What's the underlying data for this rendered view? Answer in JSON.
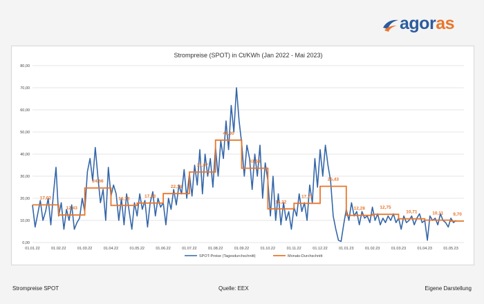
{
  "brand": {
    "logo_part1": "agor",
    "logo_part2": "as",
    "primary_color": "#2c5b9e",
    "accent_color": "#e8762c"
  },
  "footer": {
    "left": "Strompreise SPOT",
    "center": "Quelle: EEX",
    "right": "Eigene Darstellung"
  },
  "chart_data": {
    "type": "line",
    "title": "Strompreise (SPOT) in Ct/KWh (Jan 2022 - Mai 2023)",
    "xlabel": "",
    "ylabel": "",
    "ylim": [
      0,
      80
    ],
    "yticks": [
      0,
      10,
      20,
      30,
      40,
      50,
      60,
      70,
      80
    ],
    "ytick_labels": [
      "0,00",
      "10,00",
      "20,00",
      "30,00",
      "40,00",
      "50,00",
      "60,00",
      "70,00",
      "80,00"
    ],
    "xlim": [
      0,
      16.5
    ],
    "xtick_labels": [
      "01.01.22",
      "01.02.22",
      "01.03.22",
      "01.04.22",
      "01.05.22",
      "01.06.22",
      "01.07.22",
      "01.08.22",
      "01.09.22",
      "01.10.22",
      "01.11.22",
      "01.12.22",
      "01.01.23",
      "01.02.23",
      "01.03.23",
      "01.04.23",
      "01.05.23"
    ],
    "grid": true,
    "legend_position": "bottom",
    "series": [
      {
        "name": "SPOT-Preise (Tagesdurchschnitt)",
        "color": "#3466a8",
        "points": [
          [
            0.0,
            17
          ],
          [
            0.1,
            7
          ],
          [
            0.2,
            13
          ],
          [
            0.3,
            19
          ],
          [
            0.4,
            10
          ],
          [
            0.5,
            14
          ],
          [
            0.6,
            20
          ],
          [
            0.7,
            8
          ],
          [
            0.8,
            22
          ],
          [
            0.9,
            34
          ],
          [
            1.0,
            12
          ],
          [
            1.1,
            18
          ],
          [
            1.2,
            6
          ],
          [
            1.3,
            15
          ],
          [
            1.4,
            10
          ],
          [
            1.5,
            17
          ],
          [
            1.6,
            6
          ],
          [
            1.7,
            9
          ],
          [
            1.8,
            11
          ],
          [
            1.9,
            20
          ],
          [
            2.0,
            14
          ],
          [
            2.1,
            32
          ],
          [
            2.2,
            38
          ],
          [
            2.3,
            28
          ],
          [
            2.4,
            43
          ],
          [
            2.5,
            30
          ],
          [
            2.6,
            18
          ],
          [
            2.7,
            24
          ],
          [
            2.8,
            10
          ],
          [
            2.9,
            34
          ],
          [
            3.0,
            21
          ],
          [
            3.1,
            26
          ],
          [
            3.2,
            22
          ],
          [
            3.3,
            10
          ],
          [
            3.4,
            20
          ],
          [
            3.5,
            8
          ],
          [
            3.6,
            22
          ],
          [
            3.7,
            14
          ],
          [
            3.8,
            6
          ],
          [
            3.9,
            18
          ],
          [
            4.0,
            12
          ],
          [
            4.1,
            22
          ],
          [
            4.2,
            15
          ],
          [
            4.3,
            19
          ],
          [
            4.4,
            7
          ],
          [
            4.5,
            18
          ],
          [
            4.6,
            23
          ],
          [
            4.7,
            12
          ],
          [
            4.8,
            20
          ],
          [
            4.9,
            16
          ],
          [
            5.0,
            18
          ],
          [
            5.1,
            8
          ],
          [
            5.2,
            20
          ],
          [
            5.3,
            15
          ],
          [
            5.4,
            24
          ],
          [
            5.5,
            17
          ],
          [
            5.6,
            26
          ],
          [
            5.7,
            22
          ],
          [
            5.8,
            33
          ],
          [
            5.9,
            20
          ],
          [
            6.0,
            31
          ],
          [
            6.1,
            21
          ],
          [
            6.2,
            35
          ],
          [
            6.3,
            26
          ],
          [
            6.4,
            42
          ],
          [
            6.5,
            22
          ],
          [
            6.6,
            40
          ],
          [
            6.7,
            30
          ],
          [
            6.8,
            38
          ],
          [
            6.9,
            25
          ],
          [
            7.0,
            43
          ],
          [
            7.1,
            30
          ],
          [
            7.2,
            46
          ],
          [
            7.3,
            38
          ],
          [
            7.4,
            55
          ],
          [
            7.5,
            42
          ],
          [
            7.6,
            62
          ],
          [
            7.7,
            50
          ],
          [
            7.8,
            70
          ],
          [
            7.9,
            55
          ],
          [
            8.0,
            45
          ],
          [
            8.1,
            30
          ],
          [
            8.2,
            44
          ],
          [
            8.3,
            38
          ],
          [
            8.4,
            24
          ],
          [
            8.5,
            40
          ],
          [
            8.6,
            30
          ],
          [
            8.7,
            44
          ],
          [
            8.8,
            20
          ],
          [
            8.9,
            36
          ],
          [
            9.0,
            28
          ],
          [
            9.1,
            12
          ],
          [
            9.2,
            30
          ],
          [
            9.3,
            10
          ],
          [
            9.4,
            22
          ],
          [
            9.5,
            8
          ],
          [
            9.6,
            18
          ],
          [
            9.7,
            10
          ],
          [
            9.8,
            14
          ],
          [
            9.9,
            6
          ],
          [
            10.0,
            16
          ],
          [
            10.1,
            12
          ],
          [
            10.2,
            22
          ],
          [
            10.3,
            14
          ],
          [
            10.4,
            18
          ],
          [
            10.5,
            10
          ],
          [
            10.6,
            26
          ],
          [
            10.7,
            18
          ],
          [
            10.8,
            38
          ],
          [
            10.9,
            25
          ],
          [
            11.0,
            42
          ],
          [
            11.1,
            30
          ],
          [
            11.2,
            44
          ],
          [
            11.3,
            35
          ],
          [
            11.4,
            28
          ],
          [
            11.5,
            12
          ],
          [
            11.6,
            6
          ],
          [
            11.7,
            1
          ],
          [
            11.8,
            0.5
          ],
          [
            11.9,
            8
          ],
          [
            12.0,
            15
          ],
          [
            12.1,
            10
          ],
          [
            12.2,
            18
          ],
          [
            12.3,
            12
          ],
          [
            12.4,
            14
          ],
          [
            12.5,
            8
          ],
          [
            12.6,
            14
          ],
          [
            12.7,
            11
          ],
          [
            12.8,
            12
          ],
          [
            12.9,
            9
          ],
          [
            13.0,
            16
          ],
          [
            13.1,
            10
          ],
          [
            13.2,
            13
          ],
          [
            13.3,
            8
          ],
          [
            13.4,
            11
          ],
          [
            13.5,
            9
          ],
          [
            13.6,
            12
          ],
          [
            13.7,
            10
          ],
          [
            13.8,
            13
          ],
          [
            13.9,
            9
          ],
          [
            14.0,
            11
          ],
          [
            14.1,
            6
          ],
          [
            14.2,
            12
          ],
          [
            14.3,
            9
          ],
          [
            14.4,
            10
          ],
          [
            14.5,
            12
          ],
          [
            14.6,
            8
          ],
          [
            14.7,
            11
          ],
          [
            14.8,
            13
          ],
          [
            14.9,
            9
          ],
          [
            15.0,
            10
          ],
          [
            15.1,
            1
          ],
          [
            15.2,
            12
          ],
          [
            15.3,
            10
          ],
          [
            15.4,
            11
          ],
          [
            15.5,
            8
          ],
          [
            15.6,
            13
          ],
          [
            15.7,
            10
          ],
          [
            15.8,
            9
          ],
          [
            15.9,
            7
          ],
          [
            16.0,
            11
          ],
          [
            16.1,
            9
          ],
          [
            16.2,
            10
          ]
        ]
      },
      {
        "name": "Monats-Durchschnitt",
        "color": "#e8762c",
        "months": [
          [
            0,
            1,
            17.02
          ],
          [
            1,
            2,
            12.43
          ],
          [
            2,
            3,
            24.66
          ],
          [
            3,
            4,
            16.78
          ],
          [
            4,
            5,
            17.83
          ],
          [
            5,
            6,
            22.14
          ],
          [
            6,
            7,
            31.87
          ],
          [
            7,
            8,
            46.3
          ],
          [
            8,
            9,
            33.58
          ],
          [
            9,
            10,
            15.22
          ],
          [
            10,
            11,
            17.71
          ],
          [
            11,
            12,
            25.43
          ],
          [
            12,
            13,
            12.28
          ],
          [
            13,
            14,
            12.75
          ],
          [
            14,
            15,
            10.71
          ],
          [
            15,
            16,
            10.11
          ],
          [
            16,
            16.5,
            9.7
          ]
        ]
      }
    ],
    "annotations": [
      "17,02",
      "12,43",
      "24,66",
      "16,78",
      "17,83",
      "22,14",
      "31,87",
      "46,30",
      "33,58",
      "15,22",
      "17,71",
      "25,43",
      "12,28",
      "12,75",
      "10,71",
      "10,11",
      "9,70"
    ]
  }
}
